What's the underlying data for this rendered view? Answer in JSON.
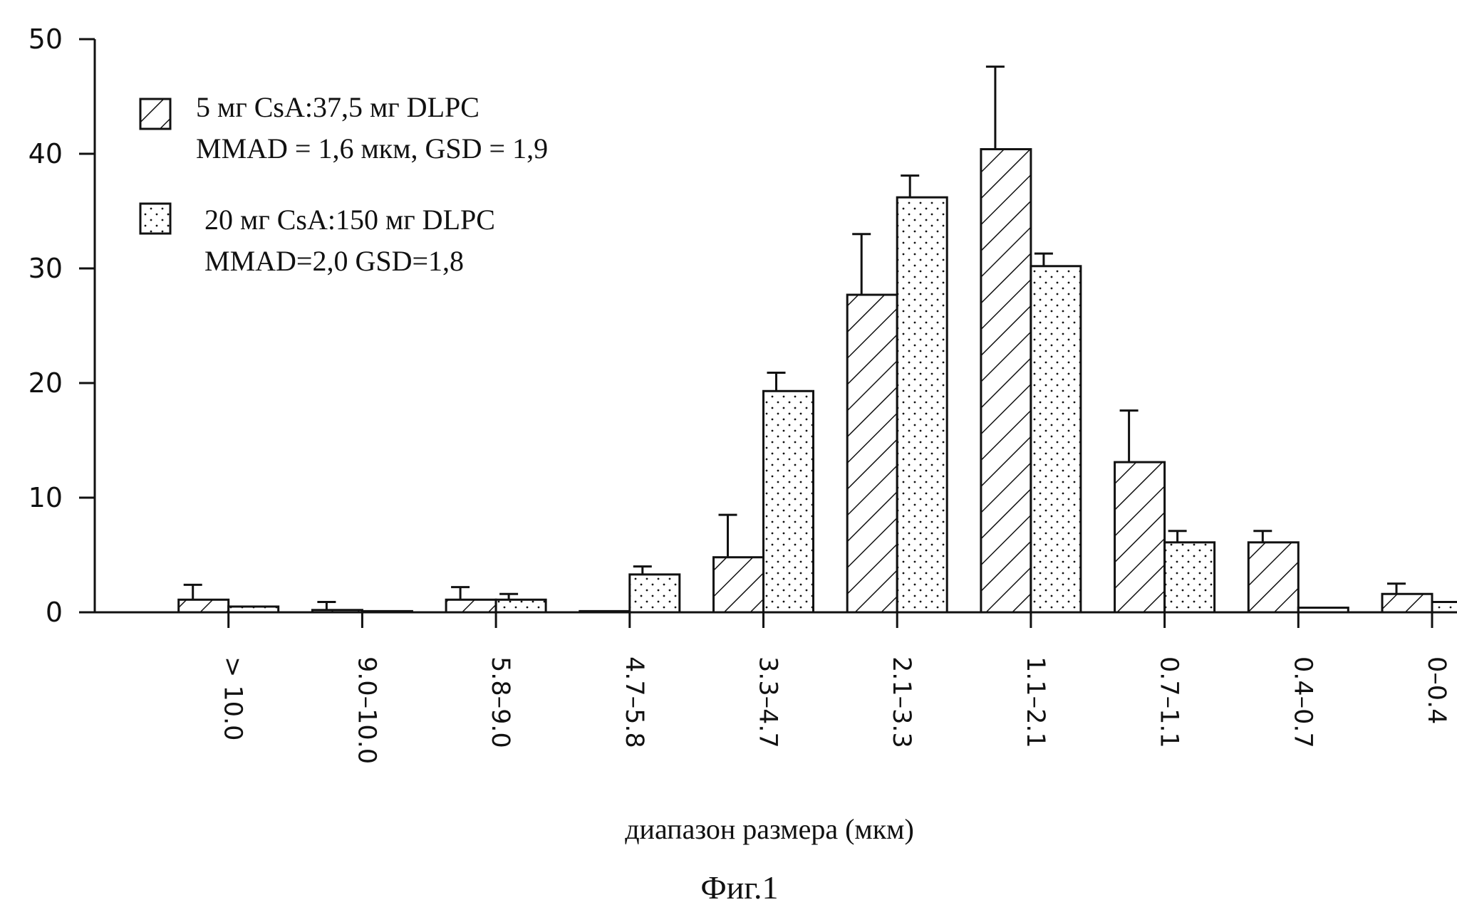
{
  "chart_data": {
    "type": "bar",
    "title": "",
    "xlabel": "диапазон размера (мкм)",
    "ylabel": "",
    "ylim": [
      0,
      50
    ],
    "yticks": [
      0,
      10,
      20,
      30,
      40,
      50
    ],
    "grid": false,
    "legend_position": "top-left",
    "categories": [
      "> 10.0",
      "9.0–10.0",
      "5.8–9.0",
      "4.7–5.8",
      "3.3–4.7",
      "2.1–3.3",
      "1.1–2.1",
      "0.7–1.1",
      "0.4–0.7",
      "0–0.4"
    ],
    "series": [
      {
        "name": "5 мг CsA:37,5 мг DLPC",
        "note": "MMAD = 1,6 мкм, GSD = 1,9",
        "pattern": "hatched",
        "values": [
          1.1,
          0.2,
          1.1,
          0.1,
          4.8,
          27.7,
          40.4,
          13.1,
          6.1,
          1.6
        ],
        "errors": [
          1.3,
          0.7,
          1.1,
          0.0,
          3.7,
          5.3,
          7.2,
          4.5,
          1.0,
          0.9
        ]
      },
      {
        "name": "20 мг CsA:150 мг DLPC",
        "note": "MMAD=2,0 GSD=1,8",
        "pattern": "dotted",
        "values": [
          0.5,
          0.1,
          1.1,
          3.3,
          19.3,
          36.2,
          30.2,
          6.1,
          0.4,
          0.9
        ],
        "errors": [
          0.0,
          0.0,
          0.5,
          0.7,
          1.6,
          1.9,
          1.1,
          1.0,
          0.0,
          0.0
        ]
      }
    ]
  },
  "caption": "Фиг.1",
  "colors": {
    "ink": "#111111",
    "background": "#ffffff"
  }
}
